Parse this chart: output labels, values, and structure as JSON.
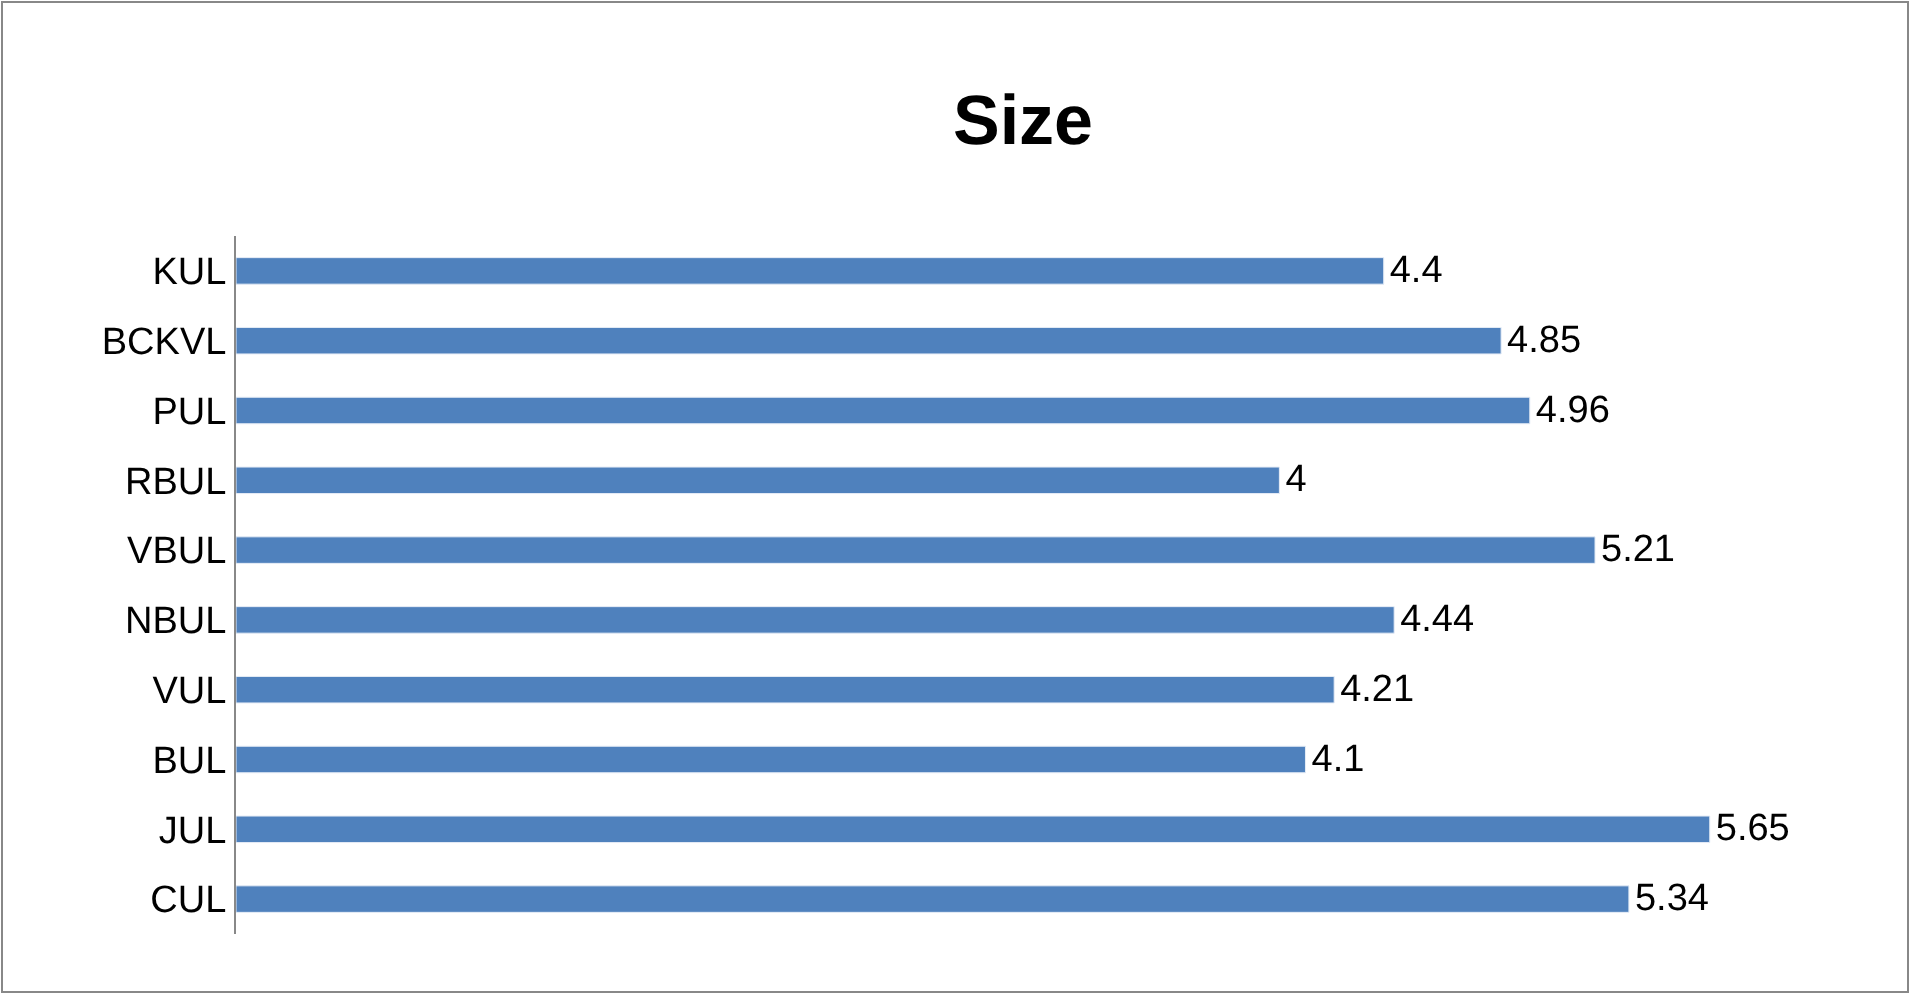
{
  "chart_data": {
    "type": "bar",
    "orientation": "horizontal",
    "title": "Size",
    "categories": [
      "KUL",
      "BCKVL",
      "PUL",
      "RBUL",
      "VBUL",
      "NBUL",
      "VUL",
      "BUL",
      "JUL",
      "CUL"
    ],
    "values": [
      4.4,
      4.85,
      4.96,
      4,
      5.21,
      4.44,
      4.21,
      4.1,
      5.65,
      5.34
    ],
    "color": "#4f81bd",
    "data_labels": true
  }
}
